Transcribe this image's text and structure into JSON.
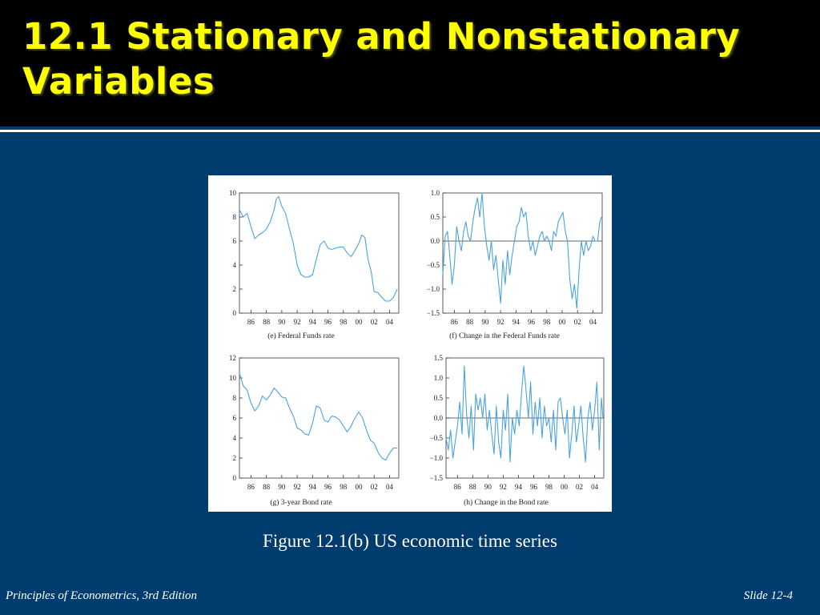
{
  "slide": {
    "title": "12.1 Stationary and Nonstationary Variables",
    "figure_caption": "Figure 12.1(b)   US economic time series",
    "footer_left": "Principles of Econometrics, 3rd Edition",
    "footer_right": "Slide 12-4"
  },
  "colors": {
    "background": "#003c6e",
    "title": "#ffff00",
    "line": "#4aa3df"
  },
  "chart_data": [
    {
      "id": "e",
      "type": "line",
      "title": "(e) Federal Funds rate",
      "x_tick_labels": [
        "86",
        "88",
        "90",
        "92",
        "94",
        "96",
        "98",
        "00",
        "02",
        "04"
      ],
      "x_tick_values": [
        1986,
        1988,
        1990,
        1992,
        1994,
        1996,
        1998,
        2000,
        2002,
        2004
      ],
      "xlim": [
        1984.5,
        2005.2
      ],
      "ylim": [
        0,
        10
      ],
      "y_ticks": [
        0,
        2,
        4,
        6,
        8,
        10
      ],
      "y_tick_labels": [
        "0",
        "2",
        "4",
        "6",
        "8",
        "10"
      ],
      "zero_line": false,
      "x": [
        1984.5,
        1985.0,
        1985.5,
        1986.0,
        1986.5,
        1987.0,
        1987.5,
        1988.0,
        1988.5,
        1989.0,
        1989.3,
        1989.6,
        1990.0,
        1990.5,
        1991.0,
        1991.5,
        1992.0,
        1992.5,
        1993.0,
        1993.5,
        1994.0,
        1994.5,
        1995.0,
        1995.5,
        1996.0,
        1996.5,
        1997.0,
        1997.5,
        1998.0,
        1998.5,
        1999.0,
        1999.5,
        2000.0,
        2000.4,
        2000.8,
        2001.2,
        2001.6,
        2002.0,
        2002.5,
        2003.0,
        2003.5,
        2004.0,
        2004.5,
        2005.0
      ],
      "y": [
        8.6,
        8.0,
        8.3,
        7.2,
        6.2,
        6.5,
        6.7,
        7.0,
        7.6,
        8.6,
        9.5,
        9.7,
        8.9,
        8.3,
        7.0,
        5.8,
        4.0,
        3.2,
        3.0,
        3.0,
        3.2,
        4.5,
        5.7,
        6.0,
        5.4,
        5.3,
        5.4,
        5.5,
        5.5,
        5.0,
        4.7,
        5.2,
        5.8,
        6.5,
        6.3,
        4.5,
        3.5,
        1.8,
        1.7,
        1.3,
        1.0,
        1.0,
        1.3,
        2.0
      ]
    },
    {
      "id": "f",
      "type": "line",
      "title": "(f) Change in the Federal Funds rate",
      "x_tick_labels": [
        "86",
        "88",
        "90",
        "92",
        "94",
        "96",
        "98",
        "00",
        "02",
        "04"
      ],
      "x_tick_values": [
        1986,
        1988,
        1990,
        1992,
        1994,
        1996,
        1998,
        2000,
        2002,
        2004
      ],
      "xlim": [
        1984.5,
        2005.2
      ],
      "ylim": [
        -1.5,
        1.0
      ],
      "y_ticks": [
        -1.5,
        -1.0,
        -0.5,
        0.0,
        0.5,
        1.0
      ],
      "y_tick_labels": [
        "−1.5",
        "−1.0",
        "−0.5",
        "0.0",
        "0.5",
        "1.0"
      ],
      "zero_line": true,
      "x": [
        1984.5,
        1984.8,
        1985.1,
        1985.4,
        1985.7,
        1986.0,
        1986.3,
        1986.6,
        1986.9,
        1987.2,
        1987.5,
        1987.8,
        1988.1,
        1988.4,
        1988.7,
        1989.0,
        1989.3,
        1989.6,
        1989.9,
        1990.2,
        1990.5,
        1990.8,
        1991.1,
        1991.4,
        1991.7,
        1992.0,
        1992.3,
        1992.6,
        1992.9,
        1993.2,
        1993.5,
        1993.8,
        1994.1,
        1994.4,
        1994.7,
        1995.0,
        1995.3,
        1995.6,
        1995.9,
        1996.2,
        1996.5,
        1996.8,
        1997.1,
        1997.4,
        1997.7,
        1998.0,
        1998.3,
        1998.6,
        1998.9,
        1999.2,
        1999.5,
        1999.8,
        2000.1,
        2000.4,
        2000.7,
        2001.0,
        2001.3,
        2001.6,
        2001.9,
        2002.2,
        2002.5,
        2002.8,
        2003.1,
        2003.4,
        2003.7,
        2004.0,
        2004.3,
        2004.6,
        2004.9,
        2005.1
      ],
      "y": [
        -0.7,
        0.1,
        0.2,
        -0.3,
        -0.9,
        -0.5,
        0.3,
        0.0,
        -0.2,
        0.2,
        0.4,
        0.1,
        0.0,
        0.4,
        0.7,
        0.9,
        0.5,
        1.0,
        0.3,
        -0.1,
        -0.4,
        0.0,
        -0.6,
        -0.3,
        -0.8,
        -1.3,
        -0.4,
        -0.9,
        -0.2,
        -0.7,
        -0.3,
        0.0,
        0.3,
        0.4,
        0.7,
        0.5,
        0.6,
        0.1,
        -0.2,
        0.0,
        -0.3,
        -0.1,
        0.1,
        0.2,
        0.0,
        0.1,
        0.0,
        -0.2,
        0.2,
        0.1,
        0.4,
        0.5,
        0.6,
        0.2,
        0.0,
        -0.8,
        -1.2,
        -0.9,
        -1.4,
        -0.6,
        0.0,
        -0.3,
        0.0,
        -0.2,
        -0.1,
        0.1,
        0.0,
        0.0,
        0.4,
        0.5
      ]
    },
    {
      "id": "g",
      "type": "line",
      "title": "(g) 3-year Bond rate",
      "x_tick_labels": [
        "86",
        "88",
        "90",
        "92",
        "94",
        "96",
        "98",
        "00",
        "02",
        "04"
      ],
      "x_tick_values": [
        1986,
        1988,
        1990,
        1992,
        1994,
        1996,
        1998,
        2000,
        2002,
        2004
      ],
      "xlim": [
        1984.5,
        2005.2
      ],
      "ylim": [
        0,
        12
      ],
      "y_ticks": [
        0,
        2,
        4,
        6,
        8,
        10,
        12
      ],
      "y_tick_labels": [
        "0",
        "2",
        "4",
        "6",
        "8",
        "10",
        "12"
      ],
      "zero_line": false,
      "x": [
        1984.5,
        1985.0,
        1985.5,
        1986.0,
        1986.5,
        1987.0,
        1987.5,
        1988.0,
        1988.5,
        1989.0,
        1989.5,
        1990.0,
        1990.5,
        1991.0,
        1991.5,
        1992.0,
        1992.5,
        1993.0,
        1993.5,
        1994.0,
        1994.5,
        1995.0,
        1995.5,
        1996.0,
        1996.5,
        1997.0,
        1997.5,
        1998.0,
        1998.5,
        1999.0,
        1999.5,
        2000.0,
        2000.5,
        2001.0,
        2001.5,
        2002.0,
        2002.5,
        2003.0,
        2003.5,
        2004.0,
        2004.5,
        2005.0
      ],
      "y": [
        10.5,
        9.2,
        8.8,
        7.5,
        6.7,
        7.2,
        8.2,
        7.8,
        8.3,
        9.0,
        8.6,
        8.1,
        8.0,
        7.0,
        6.2,
        5.0,
        4.8,
        4.4,
        4.3,
        5.5,
        7.2,
        7.0,
        5.8,
        5.6,
        6.2,
        6.1,
        5.8,
        5.2,
        4.6,
        5.2,
        6.0,
        6.6,
        6.0,
        4.8,
        3.8,
        3.5,
        2.6,
        2.0,
        1.8,
        2.5,
        3.0,
        3.0
      ]
    },
    {
      "id": "h",
      "type": "line",
      "title": "(h) Change in the Bond rate",
      "x_tick_labels": [
        "86",
        "88",
        "90",
        "92",
        "94",
        "96",
        "98",
        "00",
        "02",
        "04"
      ],
      "x_tick_values": [
        1986,
        1988,
        1990,
        1992,
        1994,
        1996,
        1998,
        2000,
        2002,
        2004
      ],
      "xlim": [
        1984.5,
        2005.2
      ],
      "ylim": [
        -1.5,
        1.5
      ],
      "y_ticks": [
        -1.5,
        -1.0,
        -0.5,
        0.0,
        0.5,
        1.0,
        1.5
      ],
      "y_tick_labels": [
        "−1.5",
        "−1.0",
        "−0.5",
        "0.0",
        "0.5",
        "1.0",
        "1.5"
      ],
      "zero_line": true,
      "x": [
        1984.5,
        1984.8,
        1985.1,
        1985.4,
        1985.7,
        1986.0,
        1986.3,
        1986.6,
        1986.9,
        1987.2,
        1987.5,
        1987.8,
        1988.1,
        1988.4,
        1988.7,
        1989.0,
        1989.3,
        1989.6,
        1989.9,
        1990.2,
        1990.5,
        1990.8,
        1991.1,
        1991.4,
        1991.7,
        1992.0,
        1992.3,
        1992.6,
        1992.9,
        1993.2,
        1993.5,
        1993.8,
        1994.1,
        1994.4,
        1994.7,
        1995.0,
        1995.3,
        1995.6,
        1995.9,
        1996.2,
        1996.5,
        1996.8,
        1997.1,
        1997.4,
        1997.7,
        1998.0,
        1998.3,
        1998.6,
        1998.9,
        1999.2,
        1999.5,
        1999.8,
        2000.1,
        2000.4,
        2000.7,
        2001.0,
        2001.3,
        2001.6,
        2001.9,
        2002.2,
        2002.5,
        2002.8,
        2003.1,
        2003.4,
        2003.7,
        2004.0,
        2004.3,
        2004.6,
        2004.9,
        2005.1
      ],
      "y": [
        -0.5,
        -0.8,
        -0.3,
        -1.0,
        -0.6,
        -0.2,
        0.4,
        -0.4,
        1.3,
        0.1,
        -0.5,
        0.3,
        -0.8,
        0.6,
        0.2,
        0.5,
        0.0,
        0.6,
        -0.3,
        0.2,
        -0.4,
        -0.9,
        0.3,
        -0.6,
        -1.0,
        0.2,
        -0.3,
        0.6,
        -1.1,
        0.0,
        -0.4,
        0.2,
        -0.2,
        0.6,
        1.3,
        0.7,
        0.0,
        0.9,
        -0.4,
        0.4,
        -0.2,
        0.5,
        -0.5,
        0.3,
        -0.2,
        0.0,
        -0.6,
        0.2,
        -0.8,
        0.4,
        0.5,
        0.0,
        -0.4,
        0.2,
        -1.0,
        -0.4,
        0.3,
        -0.6,
        -0.2,
        0.3,
        -0.5,
        -1.1,
        0.0,
        0.4,
        -0.3,
        0.2,
        0.9,
        -0.8,
        0.5,
        0.0
      ]
    }
  ]
}
